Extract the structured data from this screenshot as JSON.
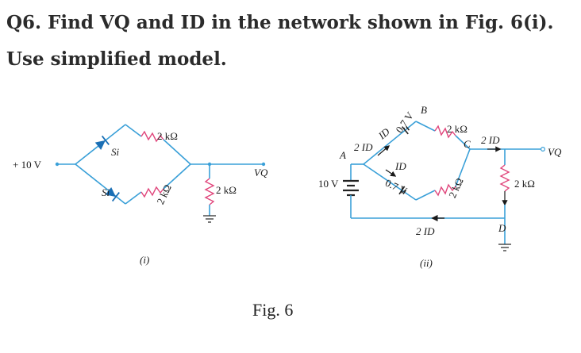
{
  "question": {
    "text": "Q6. Find VQ and ID in the network shown in Fig. 6(i). Use simplified model."
  },
  "figure_i": {
    "source_label": "+ 10 V",
    "diode_top_label": "Si",
    "diode_bottom_label": "Si",
    "resistor_top_label": "2 kΩ",
    "resistor_bottom_label": "2 kΩ",
    "resistor_load_label": "2 kΩ",
    "output_label": "VQ",
    "sublabel": "(i)"
  },
  "figure_ii": {
    "battery_label": "10 V",
    "node_a": "A",
    "node_b": "B",
    "node_c": "C",
    "node_d": "D",
    "drop_top_label": "0.7 V",
    "drop_bottom_label": "0.7 V",
    "current_2id_left": "2 ID",
    "current_id_top": "ID",
    "current_id_bottom": "ID",
    "current_2id_right": "2 ID",
    "current_2id_return": "2 ID",
    "resistor_top_label": "2 kΩ",
    "resistor_bottom_label": "2 kΩ",
    "resistor_load_label": "2 kΩ",
    "output_label": "VQ",
    "sublabel": "(ii)"
  },
  "caption": "Fig. 6",
  "colors": {
    "wire": "#3aa0d8",
    "resistor": "#e0457b",
    "diode": "#1a6fb5",
    "text": "#2b2b2b"
  }
}
